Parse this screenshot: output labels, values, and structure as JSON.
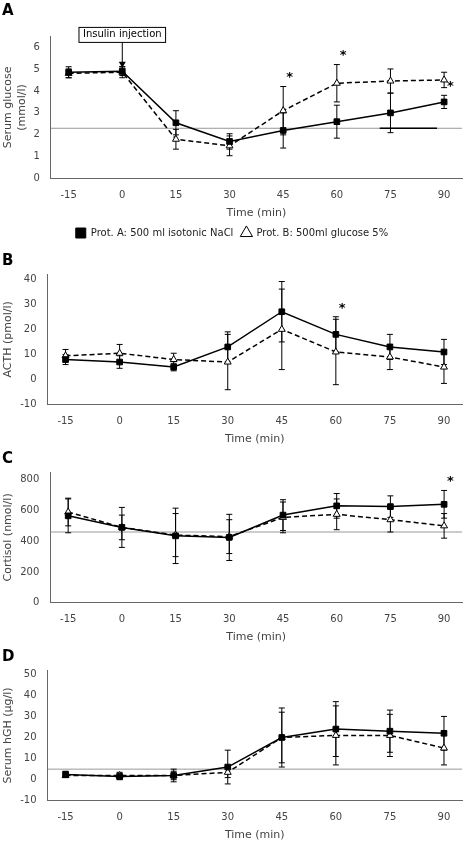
{
  "chart_data": [
    {
      "type": "line",
      "title": "A",
      "xlabel": "Time (min)",
      "ylabel": "Serum glucose\n(mmol/l)",
      "x": [
        -15,
        0,
        15,
        30,
        45,
        60,
        75,
        90
      ],
      "xlim": [
        -20,
        95
      ],
      "xticks": [
        -15,
        0,
        15,
        30,
        45,
        60,
        75,
        90
      ],
      "ylim": [
        0,
        6.5
      ],
      "yticks": [
        0,
        1,
        2,
        3,
        4,
        5,
        6
      ],
      "grid": false,
      "legend": "bottom",
      "hline": 2.3,
      "segments": [
        {
          "x": [
            72,
            88
          ],
          "y": 2.3
        }
      ],
      "series": [
        {
          "name": "Prot. A: 500 ml isotonic NaCl",
          "color": "#000000",
          "marker": "square",
          "line_style": "solid",
          "values": [
            4.85,
            4.9,
            2.55,
            1.7,
            2.2,
            2.6,
            3.0,
            3.5
          ],
          "error": [
            0.25,
            0.2,
            0.55,
            0.35,
            0.8,
            0.75,
            0.9,
            0.3
          ]
        },
        {
          "name": "Prot. B: 500ml glucose 5%",
          "color": "#000000",
          "marker": "triangle",
          "line_style": "dashed",
          "values": [
            4.8,
            4.85,
            1.8,
            1.5,
            3.1,
            4.35,
            4.45,
            4.5
          ],
          "error": [
            0.2,
            0.25,
            0.45,
            0.45,
            1.1,
            0.85,
            0.55,
            0.35
          ]
        }
      ],
      "annotations": [
        {
          "text": "*",
          "x": 90,
          "series": 0
        },
        {
          "text": "*",
          "x": 45,
          "series": 1
        },
        {
          "text": "*",
          "x": 60,
          "series": 1
        },
        {
          "text": "Insulin injection",
          "x": 0,
          "y": 6.55,
          "arrow_y": 5.05
        }
      ]
    },
    {
      "type": "line",
      "title": "B",
      "xlabel": "Time (min)",
      "ylabel": "ACTH (pmol/l)",
      "x": [
        -15,
        0,
        15,
        30,
        45,
        60,
        75,
        90
      ],
      "xlim": [
        -20,
        95
      ],
      "xticks": [
        -15,
        0,
        15,
        30,
        45,
        60,
        75,
        90
      ],
      "ylim": [
        -10,
        42
      ],
      "yticks": [
        -10,
        0,
        10,
        20,
        30,
        40
      ],
      "grid": false,
      "series": [
        {
          "color": "#000000",
          "marker": "square",
          "line_style": "solid",
          "values": [
            8.0,
            7.0,
            5.0,
            13.0,
            27.0,
            18.0,
            13.0,
            11.0
          ],
          "error": [
            2.0,
            2.5,
            1.5,
            6.0,
            12.0,
            7.0,
            5.0,
            5.0
          ]
        },
        {
          "color": "#000000",
          "marker": "triangle",
          "line_style": "dashed",
          "values": [
            9.5,
            10.5,
            8.0,
            7.0,
            20.0,
            11.0,
            9.0,
            5.0
          ],
          "error": [
            2.5,
            3.5,
            2.5,
            11.0,
            16.0,
            13.0,
            5.0,
            6.5
          ]
        }
      ],
      "annotations": [
        {
          "text": "*",
          "x": 60,
          "series": 0
        }
      ]
    },
    {
      "type": "line",
      "title": "C",
      "xlabel": "Time (min)",
      "ylabel": "Cortisol (nmol/l)",
      "x": [
        -15,
        0,
        15,
        30,
        45,
        60,
        75,
        90
      ],
      "xlim": [
        -20,
        95
      ],
      "xticks": [
        -15,
        0,
        15,
        30,
        45,
        60,
        75,
        90
      ],
      "ylim": [
        0,
        850
      ],
      "yticks": [
        0,
        200,
        400,
        600,
        800
      ],
      "grid": false,
      "hline": 460,
      "series": [
        {
          "color": "#000000",
          "marker": "square",
          "line_style": "solid",
          "values": [
            565,
            490,
            435,
            425,
            570,
            630,
            625,
            640
          ],
          "error": [
            110,
            80,
            180,
            150,
            100,
            80,
            70,
            90
          ]
        },
        {
          "color": "#000000",
          "marker": "triangle",
          "line_style": "dashed",
          "values": [
            590,
            490,
            440,
            430,
            555,
            575,
            540,
            500
          ],
          "error": [
            90,
            130,
            140,
            110,
            100,
            100,
            80,
            80
          ]
        }
      ],
      "annotations": [
        {
          "text": "*",
          "x": 90,
          "series": 0
        }
      ]
    },
    {
      "type": "line",
      "title": "D",
      "xlabel": "Time (min)",
      "ylabel": "Serum hGH (μg/l)",
      "x": [
        -15,
        0,
        15,
        30,
        45,
        60,
        75,
        90
      ],
      "xlim": [
        -20,
        95
      ],
      "xticks": [
        -15,
        0,
        15,
        30,
        45,
        60,
        75,
        90
      ],
      "ylim": [
        -10,
        52
      ],
      "yticks": [
        -10,
        0,
        10,
        20,
        30,
        40,
        50
      ],
      "grid": false,
      "hline": 5,
      "series": [
        {
          "color": "#000000",
          "marker": "square",
          "line_style": "solid",
          "values": [
            2.5,
            1.5,
            2.0,
            6.0,
            20.0,
            24.0,
            23.0,
            22.0
          ],
          "error": [
            1.5,
            1.5,
            3.0,
            8.0,
            14.0,
            13.0,
            10.0,
            8.0
          ]
        },
        {
          "color": "#000000",
          "marker": "triangle",
          "line_style": "dashed",
          "values": [
            2.0,
            2.0,
            2.0,
            3.5,
            20.0,
            21.0,
            21.0,
            15.0
          ],
          "error": [
            1.0,
            1.5,
            2.0,
            2.5,
            12.0,
            14.0,
            10.0,
            8.0
          ]
        }
      ],
      "annotations": []
    }
  ]
}
